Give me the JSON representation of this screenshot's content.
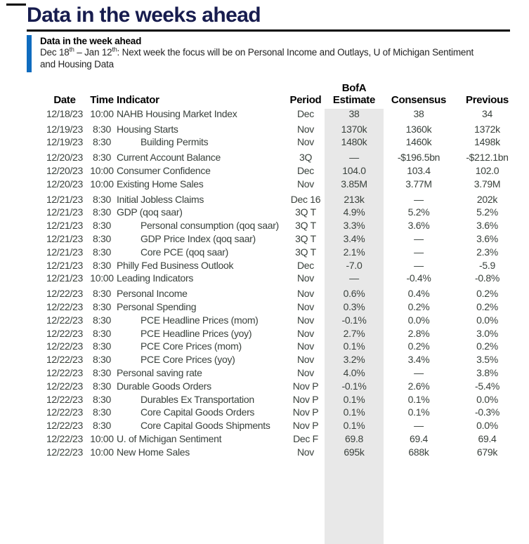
{
  "header": {
    "title": "Data in the weeks ahead"
  },
  "callout": {
    "heading": "Data in the week ahead",
    "text": {
      "part1": "Dec 18",
      "sup1": "th",
      "part2": " – Jan 12",
      "sup2": "th",
      "part3": ": Next week the focus will be on Personal Income and Outlays, U of Michigan Sentiment",
      "line2": "and Housing Data"
    }
  },
  "table": {
    "columns": [
      {
        "key": "date",
        "top": "",
        "label": "Date"
      },
      {
        "key": "time",
        "top": "",
        "label": "Time"
      },
      {
        "key": "indicator",
        "top": "",
        "label": "Indicator"
      },
      {
        "key": "period",
        "top": "",
        "label": "Period"
      },
      {
        "key": "bofa",
        "top": "BofA",
        "label": "Estimate"
      },
      {
        "key": "consensus",
        "top": "",
        "label": "Consensus"
      },
      {
        "key": "previous",
        "top": "",
        "label": "Previous"
      }
    ],
    "rows": [
      {
        "date": "12/18/23",
        "time": "10:00",
        "indicator": "NAHB Housing Market Index",
        "indent": false,
        "period": "Dec",
        "bofa": "38",
        "consensus": "38",
        "previous": "34"
      },
      {
        "date": "12/19/23",
        "time": "8:30",
        "indicator": "Housing Starts",
        "indent": false,
        "period": "Nov",
        "bofa": "1370k",
        "consensus": "1360k",
        "previous": "1372k"
      },
      {
        "date": "12/19/23",
        "time": "8:30",
        "indicator": "Building Permits",
        "indent": true,
        "period": "Nov",
        "bofa": "1480k",
        "consensus": "1460k",
        "previous": "1498k"
      },
      {
        "date": "12/20/23",
        "time": "8:30",
        "indicator": "Current Account Balance",
        "indent": false,
        "period": "3Q",
        "bofa": "—",
        "consensus": "-$196.5bn",
        "previous": "-$212.1bn"
      },
      {
        "date": "12/20/23",
        "time": "10:00",
        "indicator": "Consumer Confidence",
        "indent": false,
        "period": "Dec",
        "bofa": "104.0",
        "consensus": "103.4",
        "previous": "102.0"
      },
      {
        "date": "12/20/23",
        "time": "10:00",
        "indicator": "Existing Home Sales",
        "indent": false,
        "period": "Nov",
        "bofa": "3.85M",
        "consensus": "3.77M",
        "previous": "3.79M"
      },
      {
        "date": "12/21/23",
        "time": "8:30",
        "indicator": "Initial Jobless Claims",
        "indent": false,
        "period": "Dec 16",
        "bofa": "213k",
        "consensus": "—",
        "previous": "202k"
      },
      {
        "date": "12/21/23",
        "time": "8:30",
        "indicator": "GDP (qoq saar)",
        "indent": false,
        "period": "3Q T",
        "bofa": "4.9%",
        "consensus": "5.2%",
        "previous": "5.2%"
      },
      {
        "date": "12/21/23",
        "time": "8:30",
        "indicator": "Personal consumption (qoq saar)",
        "indent": true,
        "period": "3Q T",
        "bofa": "3.3%",
        "consensus": "3.6%",
        "previous": "3.6%"
      },
      {
        "date": "12/21/23",
        "time": "8:30",
        "indicator": "GDP Price Index (qoq saar)",
        "indent": true,
        "period": "3Q T",
        "bofa": "3.4%",
        "consensus": "—",
        "previous": "3.6%"
      },
      {
        "date": "12/21/23",
        "time": "8:30",
        "indicator": "Core PCE (qoq saar)",
        "indent": true,
        "period": "3Q T",
        "bofa": "2.1%",
        "consensus": "—",
        "previous": "2.3%"
      },
      {
        "date": "12/21/23",
        "time": "8:30",
        "indicator": "Philly Fed Business Outlook",
        "indent": false,
        "period": "Dec",
        "bofa": "-7.0",
        "consensus": "—",
        "previous": "-5.9"
      },
      {
        "date": "12/21/23",
        "time": "10:00",
        "indicator": "Leading Indicators",
        "indent": false,
        "period": "Nov",
        "bofa": "—",
        "consensus": "-0.4%",
        "previous": "-0.8%"
      },
      {
        "date": "12/22/23",
        "time": "8:30",
        "indicator": "Personal Income",
        "indent": false,
        "period": "Nov",
        "bofa": "0.6%",
        "consensus": "0.4%",
        "previous": "0.2%"
      },
      {
        "date": "12/22/23",
        "time": "8:30",
        "indicator": "Personal Spending",
        "indent": false,
        "period": "Nov",
        "bofa": "0.3%",
        "consensus": "0.2%",
        "previous": "0.2%"
      },
      {
        "date": "12/22/23",
        "time": "8:30",
        "indicator": "PCE Headline Prices (mom)",
        "indent": true,
        "period": "Nov",
        "bofa": "-0.1%",
        "consensus": "0.0%",
        "previous": "0.0%"
      },
      {
        "date": "12/22/23",
        "time": "8:30",
        "indicator": "PCE Headline Prices (yoy)",
        "indent": true,
        "period": "Nov",
        "bofa": "2.7%",
        "consensus": "2.8%",
        "previous": "3.0%"
      },
      {
        "date": "12/22/23",
        "time": "8:30",
        "indicator": "PCE Core Prices (mom)",
        "indent": true,
        "period": "Nov",
        "bofa": "0.1%",
        "consensus": "0.2%",
        "previous": "0.2%"
      },
      {
        "date": "12/22/23",
        "time": "8:30",
        "indicator": "PCE Core Prices (yoy)",
        "indent": true,
        "period": "Nov",
        "bofa": "3.2%",
        "consensus": "3.4%",
        "previous": "3.5%"
      },
      {
        "date": "12/22/23",
        "time": "8:30",
        "indicator": "Personal saving rate",
        "indent": false,
        "period": "Nov",
        "bofa": "4.0%",
        "consensus": "—",
        "previous": "3.8%"
      },
      {
        "date": "12/22/23",
        "time": "8:30",
        "indicator": "Durable Goods Orders",
        "indent": false,
        "period": "Nov P",
        "bofa": "-0.1%",
        "consensus": "2.6%",
        "previous": "-5.4%"
      },
      {
        "date": "12/22/23",
        "time": "8:30",
        "indicator": "Durables Ex Transportation",
        "indent": true,
        "period": "Nov P",
        "bofa": "0.1%",
        "consensus": "0.1%",
        "previous": "0.0%"
      },
      {
        "date": "12/22/23",
        "time": "8:30",
        "indicator": "Core Capital Goods Orders",
        "indent": true,
        "period": "Nov P",
        "bofa": "0.1%",
        "consensus": "0.1%",
        "previous": "-0.3%"
      },
      {
        "date": "12/22/23",
        "time": "8:30",
        "indicator": "Core Capital Goods Shipments",
        "indent": true,
        "period": "Nov P",
        "bofa": "0.1%",
        "consensus": "—",
        "previous": "0.0%"
      },
      {
        "date": "12/22/23",
        "time": "10:00",
        "indicator": "U. of Michigan Sentiment",
        "indent": false,
        "period": "Dec F",
        "bofa": "69.8",
        "consensus": "69.4",
        "previous": "69.4"
      },
      {
        "date": "12/22/23",
        "time": "10:00",
        "indicator": "New Home Sales",
        "indent": false,
        "period": "Nov",
        "bofa": "695k",
        "consensus": "688k",
        "previous": "679k"
      }
    ]
  },
  "colors": {
    "title_navy": "#171c4e",
    "accent_blue": "#0f6cbf",
    "estimate_band": "#e8e8e8",
    "table_ink": "#39413c"
  }
}
